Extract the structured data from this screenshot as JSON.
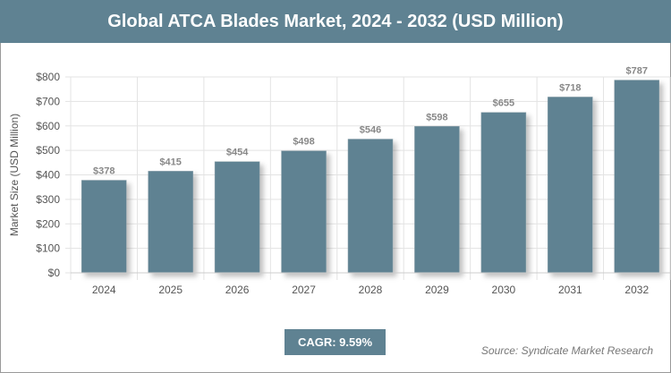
{
  "chart_data": {
    "type": "bar",
    "title": "Global ATCA Blades Market, 2024 - 2032 (USD Million)",
    "xlabel": "",
    "ylabel": "Market Size (USD Million)",
    "categories": [
      "2024",
      "2025",
      "2026",
      "2027",
      "2028",
      "2029",
      "2030",
      "2031",
      "2032"
    ],
    "values": [
      378,
      415,
      454,
      498,
      546,
      598,
      655,
      718,
      787
    ],
    "data_labels": [
      "$378",
      "$415",
      "$454",
      "$498",
      "$546",
      "$598",
      "$655",
      "$718",
      "$787"
    ],
    "ylim": [
      0,
      800
    ],
    "yticks": [
      0,
      100,
      200,
      300,
      400,
      500,
      600,
      700,
      800
    ],
    "ytick_labels": [
      "$0",
      "$100",
      "$200",
      "$300",
      "$400",
      "$500",
      "$600",
      "$700",
      "$800"
    ],
    "grid": true,
    "bar_color": "#5f8292"
  },
  "cagr": "CAGR: 9.59%",
  "source": "Source: Syndicate Market Research"
}
